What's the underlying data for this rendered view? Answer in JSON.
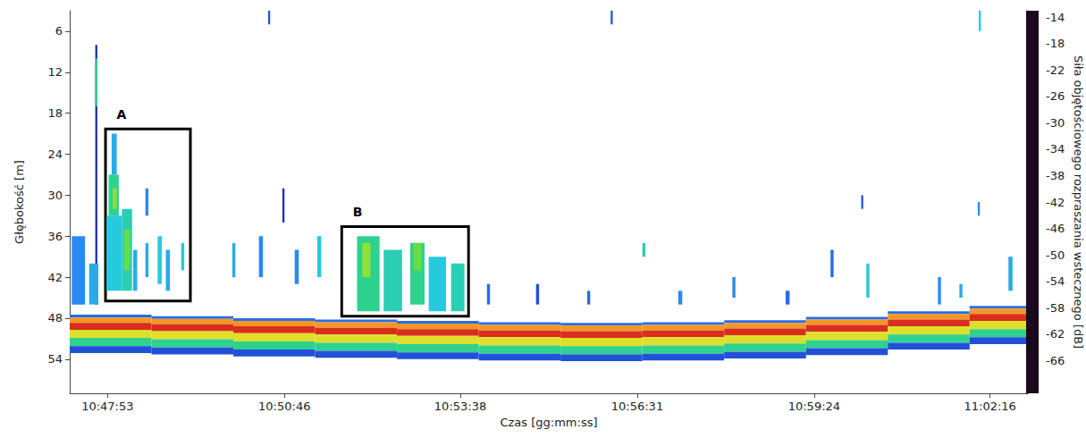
{
  "chart_data": {
    "type": "echogram",
    "xlabel": "Czas [gg:mm:ss]",
    "ylabel": "Głębokość [m]",
    "xlim": [
      38836,
      39773
    ],
    "xticks": [
      {
        "value": 38873,
        "label": "10:47:53"
      },
      {
        "value": 39046,
        "label": "10:50:46"
      },
      {
        "value": 39218,
        "label": "10:53:38"
      },
      {
        "value": 39391,
        "label": "10:56:31"
      },
      {
        "value": 39564,
        "label": "10:59:24"
      },
      {
        "value": 39736,
        "label": "11:02:16"
      }
    ],
    "ylim": [
      59,
      3
    ],
    "yticks": [
      6,
      12,
      18,
      24,
      30,
      36,
      42,
      48,
      54
    ],
    "grid": false,
    "colorbar_label": "Siła objętościowego rozpraszania wstecznego [dB]",
    "colorbar_range": [
      -71,
      -13
    ],
    "colorbar_ticks": [
      -14,
      -18,
      -22,
      -26,
      -30,
      -34,
      -38,
      -42,
      -46,
      -50,
      -54,
      -58,
      -62,
      -66
    ],
    "annotations": [
      {
        "label": "A",
        "x": [
          38871,
          38954
        ],
        "y": [
          20.3,
          45.5
        ]
      },
      {
        "label": "B",
        "x": [
          39102,
          39226
        ],
        "y": [
          34.6,
          47.7
        ]
      }
    ],
    "cells": [
      [
        38836,
        38916,
        47.5,
        47.9,
        -50
      ],
      [
        38836,
        38916,
        47.9,
        48.7,
        -24
      ],
      [
        38836,
        38916,
        48.7,
        49.7,
        -17
      ],
      [
        38836,
        38916,
        49.7,
        50.9,
        -30
      ],
      [
        38836,
        38916,
        50.9,
        52.1,
        -40
      ],
      [
        38836,
        38916,
        52.1,
        53.1,
        -52
      ],
      [
        38916,
        38996,
        47.7,
        48.1,
        -50
      ],
      [
        38916,
        38996,
        48.1,
        48.9,
        -24
      ],
      [
        38916,
        38996,
        48.9,
        49.9,
        -17
      ],
      [
        38916,
        38996,
        49.9,
        51.1,
        -30
      ],
      [
        38916,
        38996,
        51.1,
        52.3,
        -40
      ],
      [
        38916,
        38996,
        52.3,
        53.3,
        -52
      ],
      [
        38996,
        39076,
        48.0,
        48.4,
        -50
      ],
      [
        38996,
        39076,
        48.4,
        49.2,
        -24
      ],
      [
        38996,
        39076,
        49.2,
        50.2,
        -17
      ],
      [
        38996,
        39076,
        50.2,
        51.4,
        -30
      ],
      [
        38996,
        39076,
        51.4,
        52.6,
        -40
      ],
      [
        38996,
        39076,
        52.6,
        53.6,
        -52
      ],
      [
        39076,
        39156,
        48.2,
        48.6,
        -50
      ],
      [
        39076,
        39156,
        48.6,
        49.4,
        -24
      ],
      [
        39076,
        39156,
        49.4,
        50.4,
        -17
      ],
      [
        39076,
        39156,
        50.4,
        51.6,
        -30
      ],
      [
        39076,
        39156,
        51.6,
        52.8,
        -40
      ],
      [
        39076,
        39156,
        52.8,
        53.8,
        -52
      ],
      [
        39156,
        39236,
        48.4,
        48.8,
        -50
      ],
      [
        39156,
        39236,
        48.8,
        49.6,
        -24
      ],
      [
        39156,
        39236,
        49.6,
        50.6,
        -17
      ],
      [
        39156,
        39236,
        50.6,
        51.8,
        -30
      ],
      [
        39156,
        39236,
        51.8,
        53.0,
        -40
      ],
      [
        39156,
        39236,
        53.0,
        54.0,
        -52
      ],
      [
        39236,
        39316,
        48.6,
        49.0,
        -50
      ],
      [
        39236,
        39316,
        49.0,
        49.8,
        -24
      ],
      [
        39236,
        39316,
        49.8,
        50.8,
        -17
      ],
      [
        39236,
        39316,
        50.8,
        52.0,
        -30
      ],
      [
        39236,
        39316,
        52.0,
        53.2,
        -40
      ],
      [
        39236,
        39316,
        53.2,
        54.2,
        -52
      ],
      [
        39316,
        39396,
        48.7,
        49.1,
        -50
      ],
      [
        39316,
        39396,
        49.1,
        49.9,
        -24
      ],
      [
        39316,
        39396,
        49.9,
        50.9,
        -17
      ],
      [
        39316,
        39396,
        50.9,
        52.1,
        -30
      ],
      [
        39316,
        39396,
        52.1,
        53.3,
        -40
      ],
      [
        39316,
        39396,
        53.3,
        54.3,
        -52
      ],
      [
        39396,
        39476,
        48.6,
        49.0,
        -50
      ],
      [
        39396,
        39476,
        49.0,
        49.8,
        -24
      ],
      [
        39396,
        39476,
        49.8,
        50.8,
        -17
      ],
      [
        39396,
        39476,
        50.8,
        52.0,
        -30
      ],
      [
        39396,
        39476,
        52.0,
        53.2,
        -40
      ],
      [
        39396,
        39476,
        53.2,
        54.2,
        -52
      ],
      [
        39476,
        39556,
        48.3,
        48.7,
        -50
      ],
      [
        39476,
        39556,
        48.7,
        49.5,
        -24
      ],
      [
        39476,
        39556,
        49.5,
        50.5,
        -17
      ],
      [
        39476,
        39556,
        50.5,
        51.7,
        -30
      ],
      [
        39476,
        39556,
        51.7,
        52.9,
        -40
      ],
      [
        39476,
        39556,
        52.9,
        53.9,
        -52
      ],
      [
        39556,
        39636,
        47.8,
        48.2,
        -50
      ],
      [
        39556,
        39636,
        48.2,
        49.0,
        -24
      ],
      [
        39556,
        39636,
        49.0,
        50.0,
        -17
      ],
      [
        39556,
        39636,
        50.0,
        51.2,
        -30
      ],
      [
        39556,
        39636,
        51.2,
        52.4,
        -40
      ],
      [
        39556,
        39636,
        52.4,
        53.4,
        -52
      ],
      [
        39636,
        39716,
        47.0,
        47.4,
        -50
      ],
      [
        39636,
        39716,
        47.4,
        48.2,
        -24
      ],
      [
        39636,
        39716,
        48.2,
        49.2,
        -17
      ],
      [
        39636,
        39716,
        49.2,
        50.4,
        -30
      ],
      [
        39636,
        39716,
        50.4,
        51.6,
        -40
      ],
      [
        39636,
        39716,
        51.6,
        52.6,
        -52
      ],
      [
        39716,
        39773,
        46.2,
        46.6,
        -50
      ],
      [
        39716,
        39773,
        46.6,
        47.4,
        -24
      ],
      [
        39716,
        39773,
        47.4,
        48.4,
        -17
      ],
      [
        39716,
        39773,
        48.4,
        49.6,
        -30
      ],
      [
        39716,
        39773,
        49.6,
        50.8,
        -40
      ],
      [
        39716,
        39773,
        50.8,
        51.8,
        -52
      ],
      [
        38861,
        38863,
        8,
        46,
        -56
      ],
      [
        38861,
        38863,
        10,
        17,
        -40
      ],
      [
        38838,
        38851,
        36,
        46,
        -48
      ],
      [
        38855,
        38864,
        40,
        46,
        -46
      ],
      [
        38877,
        38882,
        21,
        27,
        -46
      ],
      [
        38874,
        38884,
        27,
        33,
        -40
      ],
      [
        38872,
        38887,
        33,
        44,
        -44
      ],
      [
        38878,
        38882,
        29,
        32,
        -34
      ],
      [
        38887,
        38897,
        32,
        44,
        -42
      ],
      [
        38889,
        38895,
        35,
        41,
        -36
      ],
      [
        38898,
        38902,
        38,
        44,
        -46
      ],
      [
        38910,
        38913,
        29,
        33,
        -48
      ],
      [
        38910,
        38913,
        37,
        42,
        -46
      ],
      [
        38922,
        38926,
        36,
        43,
        -44
      ],
      [
        38930,
        38934,
        38,
        44,
        -46
      ],
      [
        38945,
        38948,
        37,
        41,
        -44
      ],
      [
        38995,
        38998,
        37,
        42,
        -46
      ],
      [
        39021,
        39025,
        36,
        42,
        -48
      ],
      [
        39044,
        39046,
        29,
        34,
        -56
      ],
      [
        39056,
        39060,
        38,
        43,
        -48
      ],
      [
        39078,
        39082,
        36,
        42,
        -44
      ],
      [
        39117,
        39139,
        36,
        47,
        -40
      ],
      [
        39122,
        39130,
        37,
        42,
        -34
      ],
      [
        39143,
        39161,
        38,
        47,
        -42
      ],
      [
        39169,
        39183,
        37,
        46,
        -40
      ],
      [
        39172,
        39180,
        37,
        41,
        -36
      ],
      [
        39187,
        39204,
        39,
        47,
        -44
      ],
      [
        39209,
        39222,
        40,
        47,
        -42
      ],
      [
        39244,
        39247,
        43,
        46,
        -50
      ],
      [
        39292,
        39295,
        43,
        46,
        -52
      ],
      [
        39342,
        39345,
        44,
        46,
        -50
      ],
      [
        39396,
        39399,
        37,
        39,
        -42
      ],
      [
        39431,
        39435,
        44,
        46,
        -48
      ],
      [
        39484,
        39487,
        42,
        45,
        -48
      ],
      [
        39536,
        39540,
        44,
        46,
        -50
      ],
      [
        39580,
        39583,
        38,
        42,
        -50
      ],
      [
        39610,
        39612,
        30,
        32,
        -52
      ],
      [
        39615,
        39618,
        40,
        45,
        -44
      ],
      [
        39685,
        39688,
        42,
        46,
        -48
      ],
      [
        39706,
        39709,
        43,
        45,
        -46
      ],
      [
        39724,
        39726,
        31,
        33,
        -48
      ],
      [
        39754,
        39758,
        39,
        44,
        -46
      ],
      [
        39030,
        39032,
        3,
        5,
        -52
      ],
      [
        39365,
        39367,
        3,
        5,
        -52
      ],
      [
        39725,
        39727,
        3,
        6,
        -44
      ]
    ]
  }
}
